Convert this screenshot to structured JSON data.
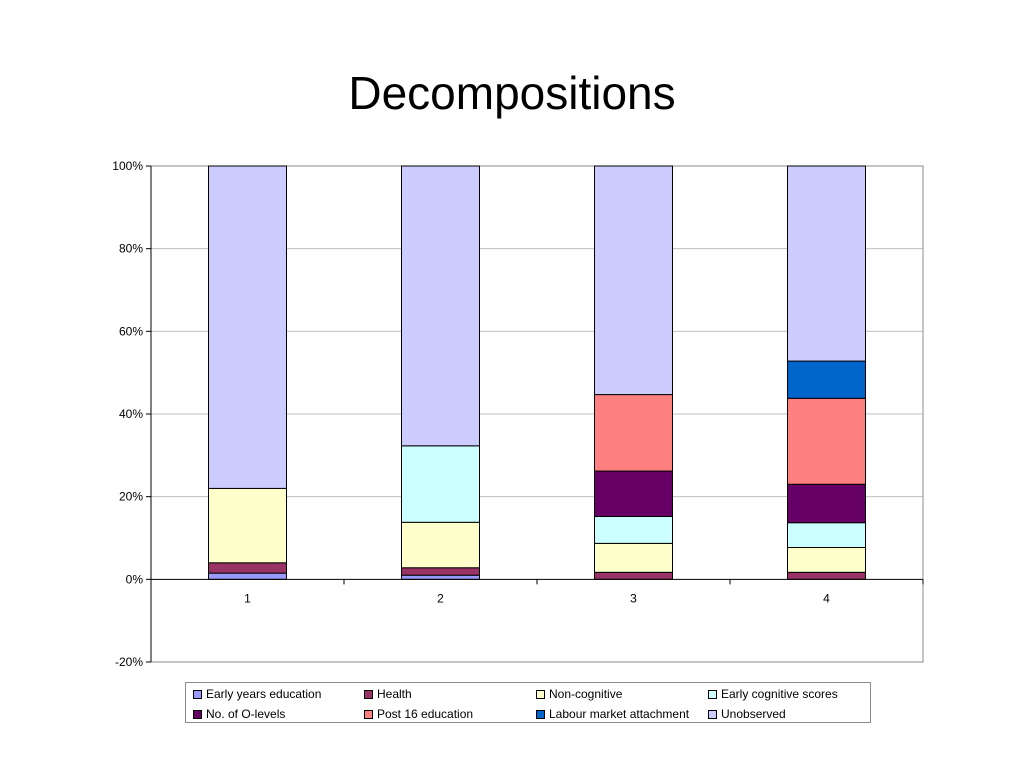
{
  "page": {
    "title": "Decompositions"
  },
  "chart_data": {
    "type": "bar",
    "stacked": true,
    "percent_stacked": true,
    "title": "",
    "xlabel": "",
    "ylabel": "",
    "categories": [
      "1",
      "2",
      "3",
      "4"
    ],
    "ylim": [
      -20,
      100
    ],
    "yticks": [
      -20,
      0,
      20,
      40,
      60,
      80,
      100
    ],
    "ytick_labels": [
      "-20%",
      "0%",
      "20%",
      "40%",
      "60%",
      "80%",
      "100%"
    ],
    "grid": true,
    "legend_position": "bottom",
    "series": [
      {
        "name": "Early years education",
        "color": "#9999FF",
        "values": [
          1.5,
          1,
          0,
          0
        ]
      },
      {
        "name": "Health",
        "color": "#993366",
        "values": [
          2.5,
          1.8,
          1.7,
          1.7
        ]
      },
      {
        "name": "Non-cognitive",
        "color": "#FFFFCC",
        "values": [
          18,
          11,
          7,
          6
        ]
      },
      {
        "name": "Early cognitive scores",
        "color": "#CCFFFF",
        "values": [
          0,
          18.5,
          6.5,
          6
        ]
      },
      {
        "name": "No. of O-levels",
        "color": "#660066",
        "values": [
          0,
          0,
          11,
          9.3
        ]
      },
      {
        "name": "Post 16 education",
        "color": "#FF8080",
        "values": [
          0,
          0,
          18.5,
          20.8
        ]
      },
      {
        "name": "Labour market attachment",
        "color": "#0066CC",
        "values": [
          0,
          0,
          0,
          9
        ]
      },
      {
        "name": "Unobserved",
        "color": "#CCCCFF",
        "values": [
          78,
          67.7,
          55.3,
          47.2
        ]
      }
    ]
  }
}
